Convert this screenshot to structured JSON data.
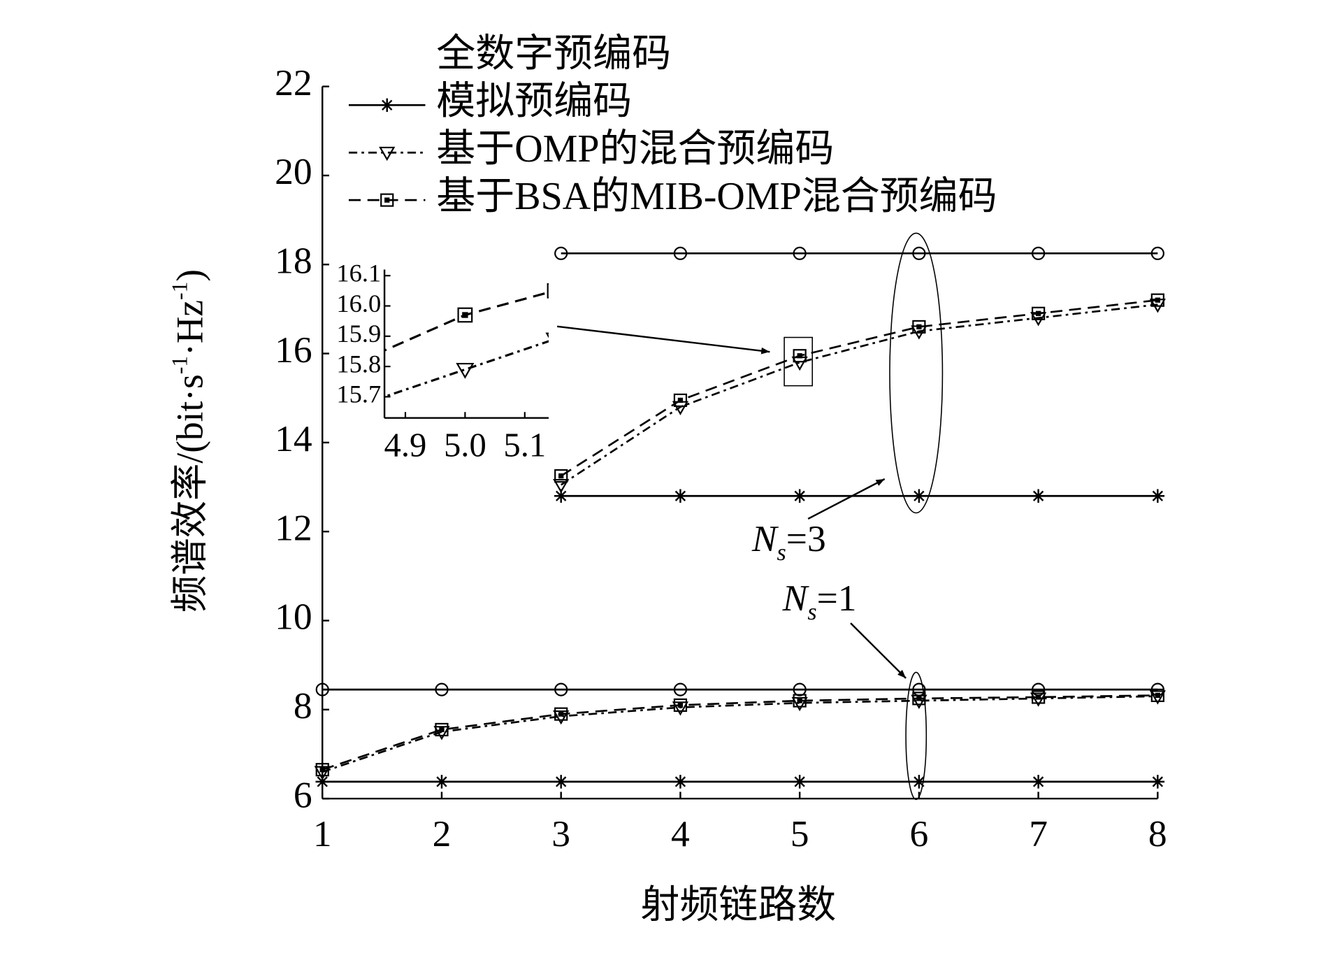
{
  "chart_data": {
    "type": "line",
    "xlabel": "射频链路数",
    "ylabel": [
      "频谱效率/(bit·s",
      "-1",
      "·Hz",
      "-1",
      ")"
    ],
    "xlim": [
      1,
      8
    ],
    "ylim": [
      6,
      22
    ],
    "xticks": [
      1,
      2,
      3,
      4,
      5,
      6,
      7,
      8
    ],
    "yticks": [
      6,
      8,
      10,
      12,
      14,
      16,
      18,
      20,
      22
    ],
    "series": [
      {
        "name": "全数字预编码",
        "color": "#000000",
        "marker": "circle",
        "dash": "solid",
        "legend_symbol": false,
        "groups": [
          {
            "x": [
              1,
              2,
              3,
              4,
              5,
              6,
              7,
              8
            ],
            "values": [
              8.45,
              8.45,
              8.45,
              8.45,
              8.45,
              8.45,
              8.45,
              8.45
            ]
          },
          {
            "x": [
              3,
              4,
              5,
              6,
              7,
              8
            ],
            "values": [
              18.25,
              18.25,
              18.25,
              18.25,
              18.25,
              18.25
            ]
          }
        ]
      },
      {
        "name": "模拟预编码",
        "color": "#000000",
        "marker": "star",
        "dash": "solid",
        "legend_symbol": true,
        "groups": [
          {
            "x": [
              1,
              2,
              3,
              4,
              5,
              6,
              7,
              8
            ],
            "values": [
              6.38,
              6.38,
              6.38,
              6.38,
              6.38,
              6.38,
              6.38,
              6.38
            ]
          },
          {
            "x": [
              3,
              4,
              5,
              6,
              7,
              8
            ],
            "values": [
              12.8,
              12.8,
              12.8,
              12.8,
              12.8,
              12.8
            ]
          }
        ]
      },
      {
        "name": "基于OMP的混合预编码",
        "color": "#000000",
        "marker": "triangle",
        "dash": "dashdot",
        "legend_symbol": true,
        "groups": [
          {
            "x": [
              1,
              2,
              3,
              4,
              5,
              6,
              7,
              8
            ],
            "values": [
              6.6,
              7.5,
              7.85,
              8.05,
              8.15,
              8.2,
              8.25,
              8.3
            ]
          },
          {
            "x": [
              3,
              4,
              5,
              6,
              7,
              8
            ],
            "values": [
              13.05,
              14.8,
              15.8,
              16.5,
              16.8,
              17.1
            ]
          }
        ]
      },
      {
        "name": "基于BSA的MIB-OMP混合预编码",
        "color": "#000000",
        "marker": "square",
        "dash": "dashed",
        "legend_symbol": true,
        "groups": [
          {
            "x": [
              1,
              2,
              3,
              4,
              5,
              6,
              7,
              8
            ],
            "values": [
              6.65,
              7.55,
              7.9,
              8.1,
              8.2,
              8.25,
              8.28,
              8.32
            ]
          },
          {
            "x": [
              3,
              4,
              5,
              6,
              7,
              8
            ],
            "values": [
              13.25,
              14.95,
              15.95,
              16.6,
              16.9,
              17.2
            ]
          }
        ]
      }
    ],
    "annotations": [
      {
        "symbol": "N",
        "subscript": "s",
        "text": "=3"
      },
      {
        "symbol": "N",
        "subscript": "s",
        "text": "=1"
      }
    ],
    "inset": {
      "xlim": [
        4.865,
        5.14
      ],
      "ylim": [
        15.63,
        16.12
      ],
      "xticks": [
        4.9,
        {
          "value": 5.0,
          "label": "5.0"
        },
        5.1
      ],
      "yticks": [
        15.7,
        15.8,
        15.9,
        {
          "value": 16.0,
          "label": "16.0"
        },
        16.1
      ],
      "series": [
        {
          "marker": "triangle",
          "dash": "dashdot",
          "x": [
            4.85,
            5.0,
            5.15
          ],
          "values": [
            15.69,
            15.79,
            15.89
          ]
        },
        {
          "marker": "square",
          "dash": "dashed",
          "x": [
            4.85,
            5.0,
            5.15
          ],
          "values": [
            15.84,
            15.97,
            16.05
          ]
        }
      ]
    }
  }
}
